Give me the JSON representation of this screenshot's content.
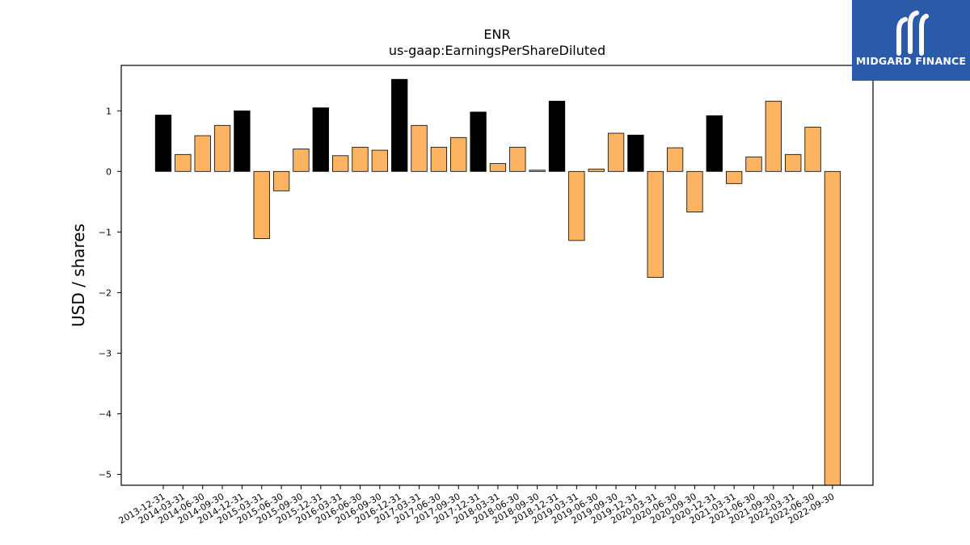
{
  "chart_data": {
    "type": "bar",
    "title": "ENR",
    "subtitle": "us-gaap:EarningsPerShareDiluted",
    "xlabel": "",
    "ylabel": "USD / shares",
    "ylim": [
      -5.18,
      1.75
    ],
    "yticks": [
      -5,
      -4,
      -3,
      -2,
      -1,
      0,
      1
    ],
    "ytick_labels": [
      "−5",
      "−4",
      "−3",
      "−2",
      "−1",
      "0",
      "1"
    ],
    "grid": false,
    "legend": "none",
    "colors": {
      "annual": "#000000",
      "quarterly": "#fdb462",
      "edge": "#000000"
    },
    "categories": [
      "2013-12-31",
      "2014-03-31",
      "2014-06-30",
      "2014-09-30",
      "2014-12-31",
      "2015-03-31",
      "2015-06-30",
      "2015-09-30",
      "2015-12-31",
      "2016-03-31",
      "2016-06-30",
      "2016-09-30",
      "2016-12-31",
      "2017-03-31",
      "2017-06-30",
      "2017-09-30",
      "2017-12-31",
      "2018-03-31",
      "2018-06-30",
      "2018-09-30",
      "2018-12-31",
      "2019-03-31",
      "2019-06-30",
      "2019-09-30",
      "2019-12-31",
      "2020-03-31",
      "2020-06-30",
      "2020-09-30",
      "2020-12-31",
      "2021-03-31",
      "2021-06-30",
      "2021-09-30",
      "2022-03-31",
      "2022-06-30",
      "2022-09-30"
    ],
    "values": [
      0.93,
      0.28,
      0.59,
      0.76,
      1.0,
      -1.11,
      -0.32,
      0.37,
      1.05,
      0.26,
      0.4,
      0.35,
      1.52,
      0.76,
      0.4,
      0.56,
      0.98,
      0.13,
      0.4,
      0.02,
      1.16,
      -1.14,
      0.04,
      0.63,
      0.6,
      -1.75,
      0.39,
      -0.67,
      0.92,
      -0.2,
      0.24,
      1.16,
      0.28,
      0.73,
      -5.18
    ],
    "bar_kind": [
      "annual",
      "quarterly",
      "quarterly",
      "quarterly",
      "annual",
      "quarterly",
      "quarterly",
      "quarterly",
      "annual",
      "quarterly",
      "quarterly",
      "quarterly",
      "annual",
      "quarterly",
      "quarterly",
      "quarterly",
      "annual",
      "quarterly",
      "quarterly",
      "quarterly",
      "annual",
      "quarterly",
      "quarterly",
      "quarterly",
      "annual",
      "quarterly",
      "quarterly",
      "quarterly",
      "annual",
      "quarterly",
      "quarterly",
      "quarterly",
      "quarterly",
      "quarterly",
      "quarterly"
    ]
  },
  "logo": {
    "text": "MIDGARD FINANCE",
    "icon": "midgard-logo-icon",
    "background": "#2b5aa8"
  }
}
